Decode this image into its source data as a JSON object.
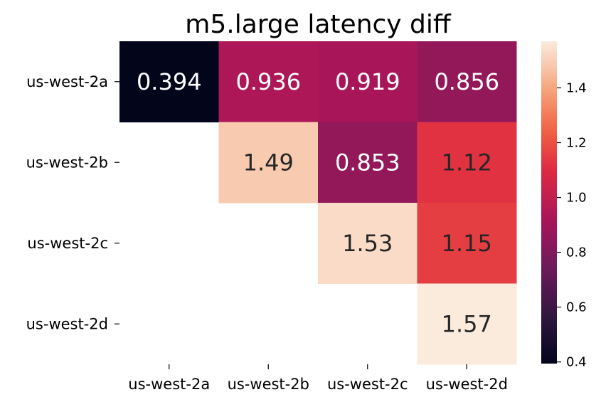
{
  "chart_data": {
    "type": "heatmap",
    "title": "m5.large latency diff",
    "xlabel": "",
    "ylabel": "",
    "x_categories": [
      "us-west-2a",
      "us-west-2b",
      "us-west-2c",
      "us-west-2d"
    ],
    "y_categories": [
      "us-west-2a",
      "us-west-2b",
      "us-west-2c",
      "us-west-2d"
    ],
    "values": [
      [
        0.394,
        0.936,
        0.919,
        0.856
      ],
      [
        null,
        1.49,
        0.853,
        1.12
      ],
      [
        null,
        null,
        1.53,
        1.15
      ],
      [
        null,
        null,
        null,
        1.57
      ]
    ],
    "value_labels": [
      [
        "0.394",
        "0.936",
        "0.919",
        "0.856"
      ],
      [
        "",
        "1.49",
        "0.853",
        "1.12"
      ],
      [
        "",
        "",
        "1.53",
        "1.15"
      ],
      [
        "",
        "",
        "",
        "1.57"
      ]
    ],
    "colorbar": {
      "range": [
        0.394,
        1.57
      ],
      "ticks": [
        0.4,
        0.6,
        0.8,
        1.0,
        1.2,
        1.4
      ],
      "tick_labels": [
        "0.4",
        "0.6",
        "0.8",
        "1.0",
        "1.2",
        "1.4"
      ],
      "colormap": "rocket"
    },
    "masked": "lower-triangle",
    "grid": false
  }
}
